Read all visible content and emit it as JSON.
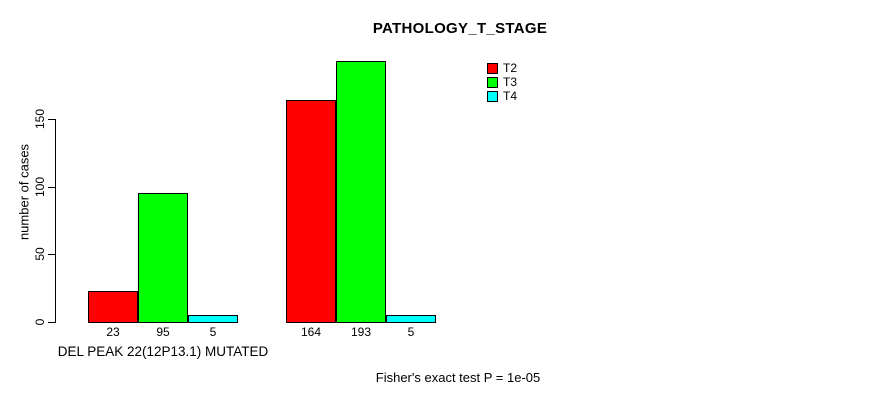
{
  "chart_data": {
    "type": "bar",
    "title": "PATHOLOGY_T_STAGE",
    "ylabel": "number of cases",
    "xlabel": "DEL PEAK 22(12P13.1) MUTATED",
    "annotation": "Fisher's exact test P = 1e-05",
    "ylim": [
      0,
      150
    ],
    "yticks": [
      0,
      50,
      100,
      150
    ],
    "grid": false,
    "legend_position": "top-right",
    "categories": [
      "DEL PEAK 22(12P13.1) MUTATED",
      ""
    ],
    "series": [
      {
        "name": "T2",
        "color": "#ff0000",
        "values": [
          23,
          164
        ]
      },
      {
        "name": "T3",
        "color": "#00ff00",
        "values": [
          95,
          193
        ]
      },
      {
        "name": "T4",
        "color": "#00ffff",
        "values": [
          5,
          5
        ]
      }
    ]
  }
}
